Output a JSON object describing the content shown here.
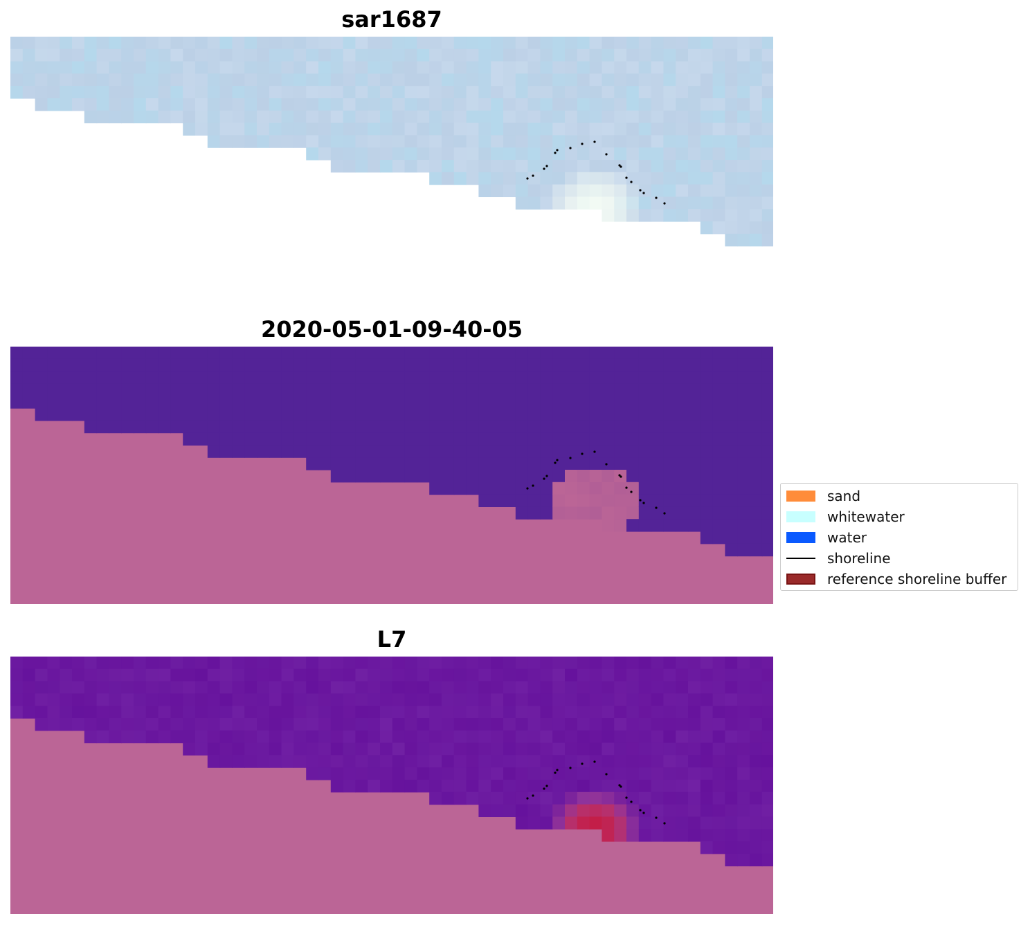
{
  "panels": [
    {
      "title": "sar1687",
      "style": "sar"
    },
    {
      "title": "2020-05-01-09-40-05",
      "style": "classified"
    },
    {
      "title": "L7",
      "style": "optical"
    }
  ],
  "legend": {
    "items": [
      {
        "label": "sand",
        "color": "#ff8c3a",
        "kind": "patch"
      },
      {
        "label": "whitewater",
        "color": "#c8ffff",
        "kind": "patch"
      },
      {
        "label": "water",
        "color": "#0a5aff",
        "kind": "patch"
      },
      {
        "label": "shoreline",
        "color": "#000000",
        "kind": "line"
      },
      {
        "label": "reference shoreline buffer",
        "color": "#9a2a2a",
        "kind": "patch"
      }
    ]
  },
  "colors": {
    "land": "#bb6596",
    "water_classified": "#532397",
    "sar_base": "#bcd0e6",
    "optical_water": "#6a1aa0",
    "buffer_red": "#c8173a",
    "shoreline": "#000000"
  }
}
